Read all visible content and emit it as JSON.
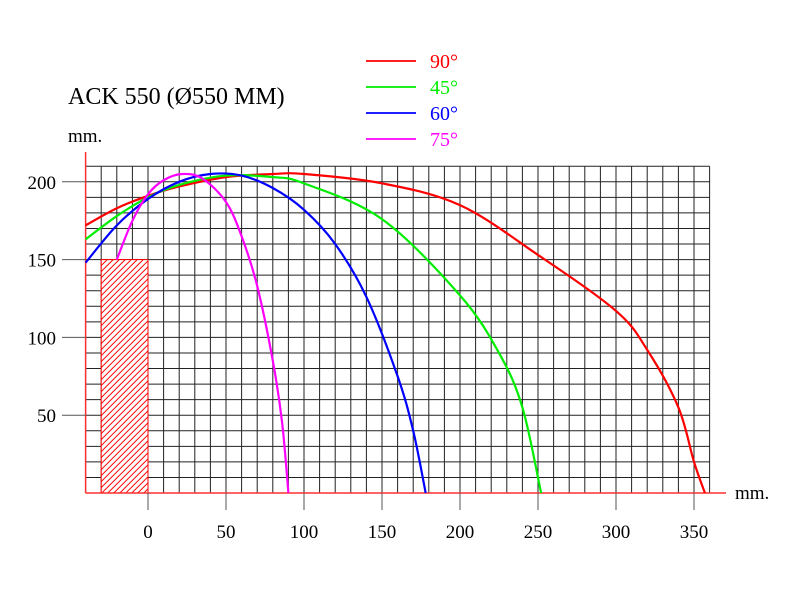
{
  "chart_data": {
    "type": "line",
    "title": "ACK 550 (Ø550 MM)",
    "xlabel": "mm.",
    "ylabel": "mm.",
    "xlim": [
      -40,
      360
    ],
    "ylim": [
      0,
      210
    ],
    "grid": true,
    "legend_position": "top",
    "x_ticks": [
      0,
      50,
      100,
      150,
      200,
      250,
      300,
      350
    ],
    "y_ticks": [
      50,
      100,
      150,
      200
    ],
    "hatched_region": {
      "x": [
        -30,
        0
      ],
      "y": [
        0,
        150
      ],
      "color": "#ff0000"
    },
    "series": [
      {
        "name": "90°",
        "color": "#ff0000",
        "points": [
          [
            -40,
            172
          ],
          [
            -20,
            183
          ],
          [
            0,
            191
          ],
          [
            20,
            197
          ],
          [
            50,
            203
          ],
          [
            80,
            205
          ],
          [
            100,
            205
          ],
          [
            150,
            199
          ],
          [
            200,
            185
          ],
          [
            250,
            153
          ],
          [
            300,
            117
          ],
          [
            320,
            92
          ],
          [
            340,
            55
          ],
          [
            350,
            20
          ],
          [
            357,
            0
          ]
        ]
      },
      {
        "name": "45°",
        "color": "#00ee00",
        "points": [
          [
            -40,
            163
          ],
          [
            -20,
            178
          ],
          [
            0,
            190
          ],
          [
            20,
            198
          ],
          [
            50,
            204
          ],
          [
            80,
            203
          ],
          [
            100,
            199
          ],
          [
            150,
            176
          ],
          [
            200,
            127
          ],
          [
            225,
            90
          ],
          [
            240,
            55
          ],
          [
            252,
            0
          ]
        ]
      },
      {
        "name": "60°",
        "color": "#0000ff",
        "points": [
          [
            -40,
            148
          ],
          [
            -20,
            172
          ],
          [
            0,
            189
          ],
          [
            20,
            200
          ],
          [
            40,
            205
          ],
          [
            60,
            204
          ],
          [
            80,
            196
          ],
          [
            100,
            182
          ],
          [
            120,
            160
          ],
          [
            140,
            126
          ],
          [
            160,
            75
          ],
          [
            170,
            40
          ],
          [
            178,
            0
          ]
        ]
      },
      {
        "name": "75°",
        "color": "#ff00ff",
        "points": [
          [
            -20,
            150
          ],
          [
            -10,
            175
          ],
          [
            0,
            192
          ],
          [
            10,
            201
          ],
          [
            22,
            205
          ],
          [
            35,
            202
          ],
          [
            50,
            187
          ],
          [
            60,
            165
          ],
          [
            70,
            133
          ],
          [
            80,
            85
          ],
          [
            86,
            45
          ],
          [
            90,
            0
          ]
        ]
      }
    ]
  }
}
